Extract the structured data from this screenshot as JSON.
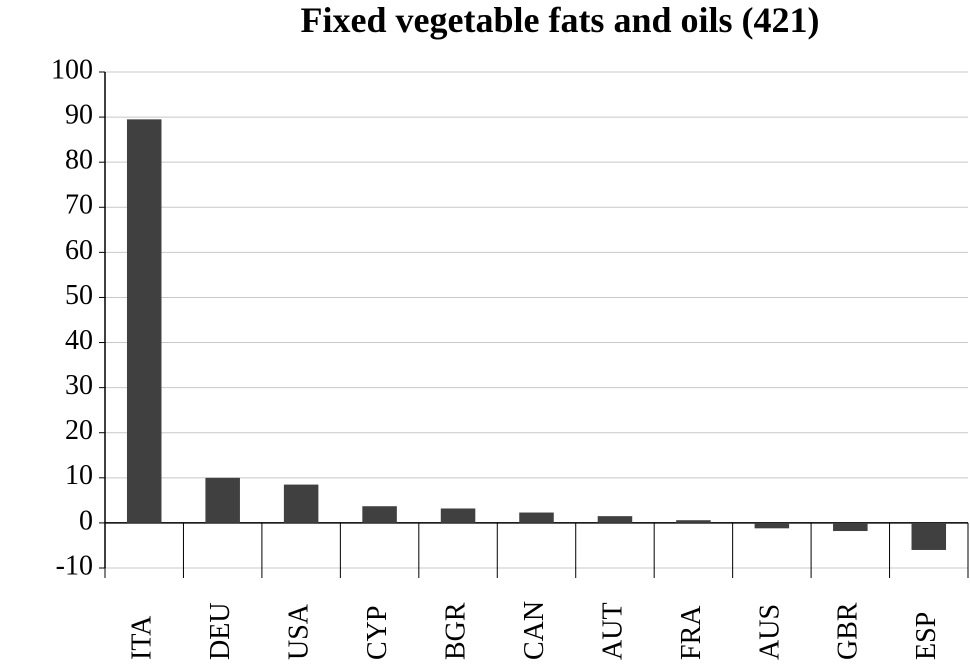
{
  "chart_data": {
    "type": "bar",
    "title": "Fixed vegetable fats and oils  (421)",
    "categories": [
      "ITA",
      "DEU",
      "USA",
      "CYP",
      "BGR",
      "CAN",
      "AUT",
      "FRA",
      "AUS",
      "GBR",
      "ESP"
    ],
    "values": [
      89.5,
      10,
      8.5,
      3.7,
      3.2,
      2.3,
      1.5,
      0.6,
      -1.2,
      -1.8,
      -6
    ],
    "color": "#404040",
    "ylim": [
      -10,
      100
    ],
    "yticks": [
      -10,
      0,
      10,
      20,
      30,
      40,
      50,
      60,
      70,
      80,
      90,
      100
    ],
    "grid": true
  }
}
